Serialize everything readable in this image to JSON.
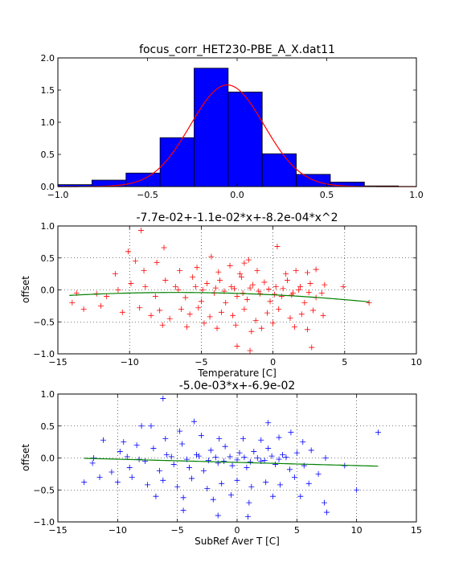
{
  "chart_data": [
    {
      "type": "histogram",
      "title": "focus_corr_HET230-PBE_A_X.dat11",
      "xlabel": "",
      "ylabel": "",
      "xlim": [
        -1.0,
        1.0
      ],
      "ylim": [
        0.0,
        2.0
      ],
      "xticks": [
        "−1.0",
        "−0.5",
        "0.0",
        "0.5",
        "1.0"
      ],
      "yticks": [
        "0.0",
        "0.5",
        "1.0",
        "1.5",
        "2.0"
      ],
      "bin_edges": [
        -1.0,
        -0.81,
        -0.62,
        -0.43,
        -0.24,
        -0.05,
        0.14,
        0.33,
        0.52,
        0.71,
        0.9
      ],
      "values": [
        0.03,
        0.1,
        0.21,
        0.76,
        1.84,
        1.47,
        0.51,
        0.19,
        0.07,
        0.01
      ],
      "bar_color": "#0000ff",
      "fit_curve": {
        "type": "gaussian",
        "color": "#ff0000",
        "amplitude": 1.58,
        "mean": -0.055,
        "sigma": 0.205
      },
      "grid": false
    },
    {
      "type": "scatter",
      "title": "-7.7e-02+-1.1e-02*x+-8.2e-04*x^2",
      "xlabel": "Temperature [C]",
      "ylabel": "offset",
      "xlim": [
        -15,
        10
      ],
      "ylim": [
        -1.0,
        1.0
      ],
      "xticks": [
        "−15",
        "−10",
        "−5",
        "0",
        "5",
        "10"
      ],
      "yticks": [
        "−1.0",
        "−0.5",
        "0.0",
        "0.5",
        "1.0"
      ],
      "marker": "+",
      "marker_color": "#ff0000",
      "fit": {
        "coefficients": [
          -0.077,
          -0.011,
          -0.00082
        ],
        "color": "#008000",
        "x_range": [
          -14.2,
          6.7
        ]
      },
      "grid": true,
      "points": [
        [
          -9.2,
          0.93
        ],
        [
          -10.1,
          0.6
        ],
        [
          -7.6,
          0.66
        ],
        [
          -9.6,
          0.45
        ],
        [
          -8.1,
          0.43
        ],
        [
          -4.3,
          0.52
        ],
        [
          -3.0,
          0.38
        ],
        [
          -2.0,
          0.42
        ],
        [
          -1.7,
          0.47
        ],
        [
          0.3,
          0.68
        ],
        [
          1.6,
          0.3
        ],
        [
          2.4,
          0.27
        ],
        [
          4.9,
          0.05
        ],
        [
          3.4,
          -0.05
        ],
        [
          -13.7,
          -0.05
        ],
        [
          -12.3,
          -0.06
        ],
        [
          -11.6,
          -0.1
        ],
        [
          -10.8,
          0.0
        ],
        [
          -9.9,
          0.1
        ],
        [
          -8.9,
          0.05
        ],
        [
          -8.2,
          -0.1
        ],
        [
          -7.5,
          0.15
        ],
        [
          -6.8,
          0.05
        ],
        [
          -6.1,
          -0.12
        ],
        [
          -5.6,
          0.2
        ],
        [
          -5.0,
          -0.18
        ],
        [
          -4.6,
          0.1
        ],
        [
          -4.1,
          -0.05
        ],
        [
          -3.7,
          0.15
        ],
        [
          -3.3,
          -0.2
        ],
        [
          -2.9,
          0.05
        ],
        [
          -2.5,
          -0.1
        ],
        [
          -2.2,
          0.2
        ],
        [
          -1.8,
          -0.15
        ],
        [
          -1.4,
          0.08
        ],
        [
          -1.0,
          -0.02
        ],
        [
          -0.6,
          0.12
        ],
        [
          -0.2,
          -0.18
        ],
        [
          0.2,
          0.05
        ],
        [
          0.6,
          -0.1
        ],
        [
          1.0,
          0.15
        ],
        [
          1.4,
          -0.05
        ],
        [
          1.8,
          0.0
        ],
        [
          2.2,
          -0.2
        ],
        [
          2.6,
          0.1
        ],
        [
          3.0,
          -0.12
        ],
        [
          3.6,
          0.08
        ],
        [
          -13.2,
          -0.3
        ],
        [
          -12.0,
          -0.25
        ],
        [
          -10.5,
          -0.35
        ],
        [
          -9.3,
          -0.28
        ],
        [
          -8.5,
          -0.4
        ],
        [
          -7.9,
          -0.32
        ],
        [
          -7.2,
          -0.45
        ],
        [
          -6.4,
          -0.3
        ],
        [
          -5.8,
          -0.38
        ],
        [
          -5.2,
          -0.28
        ],
        [
          -4.4,
          -0.42
        ],
        [
          -3.6,
          -0.35
        ],
        [
          -2.8,
          -0.4
        ],
        [
          -2.0,
          -0.3
        ],
        [
          -1.2,
          -0.48
        ],
        [
          -0.4,
          -0.36
        ],
        [
          0.4,
          -0.3
        ],
        [
          1.2,
          -0.44
        ],
        [
          2.0,
          -0.38
        ],
        [
          2.8,
          -0.32
        ],
        [
          3.5,
          -0.4
        ],
        [
          -7.7,
          -0.55
        ],
        [
          -6.0,
          -0.58
        ],
        [
          -4.8,
          -0.52
        ],
        [
          -3.9,
          -0.6
        ],
        [
          -2.6,
          -0.55
        ],
        [
          -1.5,
          -0.65
        ],
        [
          -0.8,
          -0.6
        ],
        [
          0.0,
          -0.52
        ],
        [
          1.5,
          -0.58
        ],
        [
          2.4,
          -0.62
        ],
        [
          -2.5,
          -0.88
        ],
        [
          -1.6,
          -0.95
        ],
        [
          2.7,
          -0.9
        ],
        [
          -11.0,
          0.25
        ],
        [
          -9.0,
          0.3
        ],
        [
          -6.5,
          0.3
        ],
        [
          -5.3,
          0.35
        ],
        [
          -3.8,
          0.28
        ],
        [
          -2.3,
          0.25
        ],
        [
          -1.1,
          0.3
        ],
        [
          0.9,
          0.25
        ],
        [
          3.0,
          0.32
        ],
        [
          -14.0,
          -0.2
        ],
        [
          -6.6,
          0.0
        ],
        [
          -5.4,
          0.05
        ],
        [
          -4.9,
          0.0
        ],
        [
          -4.0,
          0.03
        ],
        [
          -3.4,
          -0.02
        ],
        [
          -2.7,
          0.02
        ],
        [
          -2.1,
          -0.05
        ],
        [
          -1.6,
          0.03
        ],
        [
          -0.9,
          -0.06
        ],
        [
          -0.3,
          0.01
        ],
        [
          0.1,
          -0.07
        ],
        [
          0.7,
          0.02
        ],
        [
          1.3,
          -0.08
        ],
        [
          1.9,
          0.05
        ],
        [
          2.5,
          -0.04
        ],
        [
          6.7,
          -0.2
        ]
      ]
    },
    {
      "type": "scatter",
      "title": "-5.0e-03*x+-6.9e-02",
      "xlabel": "SubRef Aver T [C]",
      "ylabel": "offset",
      "xlim": [
        -15,
        15
      ],
      "ylim": [
        -1.0,
        1.0
      ],
      "xticks": [
        "−15",
        "−10",
        "−5",
        "0",
        "5",
        "10",
        "15"
      ],
      "yticks": [
        "−1.0",
        "−0.5",
        "0.0",
        "0.5",
        "1.0"
      ],
      "marker": "+",
      "marker_color": "#0000ff",
      "fit": {
        "coefficients": [
          -0.069,
          -0.005
        ],
        "color": "#008000",
        "x_range": [
          -12.8,
          11.8
        ]
      },
      "grid": true,
      "points": [
        [
          -6.2,
          0.93
        ],
        [
          -8.0,
          0.5
        ],
        [
          -3.6,
          0.57
        ],
        [
          -4.8,
          0.42
        ],
        [
          2.6,
          0.55
        ],
        [
          -11.2,
          0.28
        ],
        [
          4.5,
          0.4
        ],
        [
          11.8,
          0.4
        ],
        [
          -12.8,
          -0.38
        ],
        [
          -12.1,
          -0.08
        ],
        [
          -10.5,
          -0.22
        ],
        [
          -9.8,
          0.1
        ],
        [
          -9.0,
          -0.15
        ],
        [
          -8.4,
          0.2
        ],
        [
          -7.7,
          -0.05
        ],
        [
          -7.0,
          0.15
        ],
        [
          -6.5,
          -0.2
        ],
        [
          -5.9,
          0.05
        ],
        [
          -5.3,
          -0.1
        ],
        [
          -4.6,
          0.22
        ],
        [
          -4.0,
          -0.15
        ],
        [
          -3.4,
          0.05
        ],
        [
          -2.8,
          -0.2
        ],
        [
          -2.2,
          0.12
        ],
        [
          -1.6,
          -0.08
        ],
        [
          -1.0,
          0.18
        ],
        [
          -0.4,
          -0.12
        ],
        [
          0.2,
          0.08
        ],
        [
          0.8,
          -0.15
        ],
        [
          1.4,
          0.1
        ],
        [
          2.0,
          -0.05
        ],
        [
          2.6,
          0.15
        ],
        [
          3.2,
          -0.1
        ],
        [
          3.8,
          0.05
        ],
        [
          4.4,
          -0.18
        ],
        [
          5.0,
          0.08
        ],
        [
          5.6,
          -0.12
        ],
        [
          6.2,
          0.12
        ],
        [
          6.8,
          -0.25
        ],
        [
          7.4,
          0.0
        ],
        [
          -11.5,
          -0.3
        ],
        [
          -10.0,
          -0.38
        ],
        [
          -8.8,
          -0.3
        ],
        [
          -7.5,
          -0.42
        ],
        [
          -6.2,
          -0.35
        ],
        [
          -5.0,
          -0.45
        ],
        [
          -3.8,
          -0.32
        ],
        [
          -2.5,
          -0.48
        ],
        [
          -1.3,
          -0.4
        ],
        [
          0.0,
          -0.35
        ],
        [
          1.2,
          -0.45
        ],
        [
          2.4,
          -0.38
        ],
        [
          3.6,
          -0.42
        ],
        [
          4.8,
          -0.3
        ],
        [
          6.0,
          -0.4
        ],
        [
          -6.8,
          -0.6
        ],
        [
          -4.5,
          -0.62
        ],
        [
          -2.0,
          -0.65
        ],
        [
          -0.5,
          -0.58
        ],
        [
          1.0,
          -0.7
        ],
        [
          3.0,
          -0.6
        ],
        [
          5.3,
          -0.6
        ],
        [
          7.3,
          -0.7
        ],
        [
          -4.5,
          -0.82
        ],
        [
          -1.6,
          -0.9
        ],
        [
          0.9,
          -0.92
        ],
        [
          7.5,
          -0.85
        ],
        [
          -9.5,
          0.25
        ],
        [
          -6.0,
          0.3
        ],
        [
          -3.0,
          0.35
        ],
        [
          -1.5,
          0.3
        ],
        [
          0.5,
          0.3
        ],
        [
          2.0,
          0.28
        ],
        [
          3.5,
          0.32
        ],
        [
          5.5,
          0.25
        ],
        [
          -12.0,
          0.0
        ],
        [
          -5.5,
          0.02
        ],
        [
          -4.2,
          -0.02
        ],
        [
          -3.2,
          0.03
        ],
        [
          -2.4,
          -0.04
        ],
        [
          -1.8,
          0.01
        ],
        [
          -1.1,
          -0.05
        ],
        [
          -0.6,
          0.02
        ],
        [
          0.0,
          -0.03
        ],
        [
          0.6,
          0.01
        ],
        [
          1.1,
          -0.06
        ],
        [
          1.7,
          0.0
        ],
        [
          2.3,
          -0.04
        ],
        [
          2.9,
          0.03
        ],
        [
          3.5,
          -0.02
        ],
        [
          4.1,
          0.01
        ],
        [
          -8.2,
          -0.02
        ],
        [
          -9.2,
          0.02
        ],
        [
          10.0,
          -0.5
        ],
        [
          9.0,
          -0.12
        ],
        [
          -7.2,
          0.5
        ]
      ]
    }
  ]
}
